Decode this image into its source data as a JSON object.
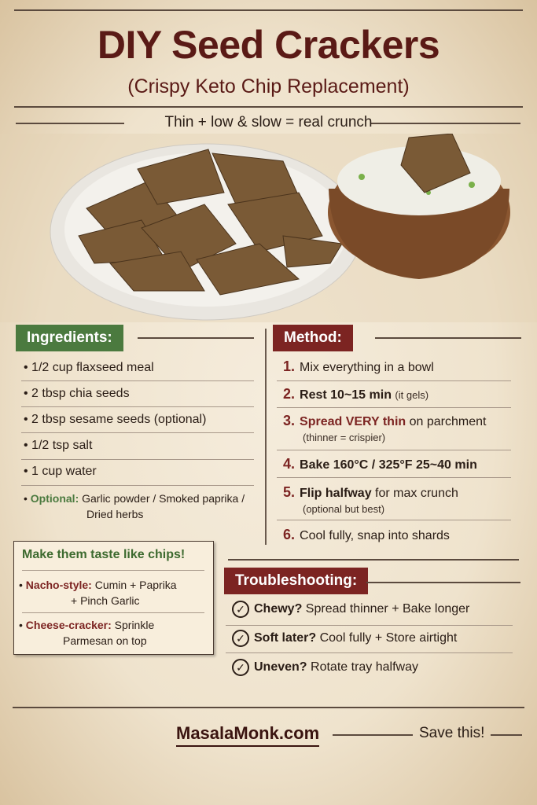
{
  "header": {
    "title": "DIY Seed Crackers",
    "subtitle": "(Crispy Keto Chip Replacement)",
    "tagline": "Thin + low & slow = real crunch"
  },
  "ingredients": {
    "heading": "Ingredients:",
    "items": [
      "1/2 cup flaxseed meal",
      "2 tbsp chia seeds",
      "2 tbsp sesame seeds (optional)",
      "1/2 tsp salt",
      "1 cup water"
    ],
    "optional_label": "Optional:",
    "optional_text": "Garlic powder / Smoked paprika /",
    "optional_text2": "Dried herbs"
  },
  "method": {
    "heading": "Method:",
    "steps": [
      {
        "n": "1.",
        "main": "Mix everything in a bowl",
        "note": ""
      },
      {
        "n": "2.",
        "main": "Rest 10~15 min",
        "note": "(it gels)"
      },
      {
        "n": "3.",
        "bold": "Spread VERY thin",
        "main": "on parchment",
        "note": "(thinner = crispier)"
      },
      {
        "n": "4.",
        "main": "Bake 160°C / 325°F 25~40 min",
        "note": ""
      },
      {
        "n": "5.",
        "bold": "Flip halfway",
        "main": "for max crunch",
        "note": "(optional but best)"
      },
      {
        "n": "6.",
        "main": "Cool fully, snap into shards",
        "note": ""
      }
    ]
  },
  "chips_box": {
    "heading": "Make them taste like chips!",
    "items": [
      {
        "label": "Nacho-style:",
        "text": "Cumin + Paprika",
        "text2": "+ Pinch Garlic"
      },
      {
        "label": "Cheese-cracker:",
        "text": "Sprinkle",
        "text2": "Parmesan on top"
      }
    ]
  },
  "troubleshooting": {
    "heading": "Troubleshooting:",
    "items": [
      {
        "q": "Chewy?",
        "a": "Spread thinner + Bake longer"
      },
      {
        "q": "Soft later?",
        "a": "Cool fully + Store airtight"
      },
      {
        "q": "Uneven?",
        "a": "Rotate tray halfway"
      }
    ]
  },
  "footer": {
    "site": "MasalaMonk.com",
    "cta": "Save this!"
  },
  "colors": {
    "title": "#5a1a16",
    "green": "#4b7a3f",
    "red": "#7c2422",
    "background": "#f2e7d4"
  }
}
